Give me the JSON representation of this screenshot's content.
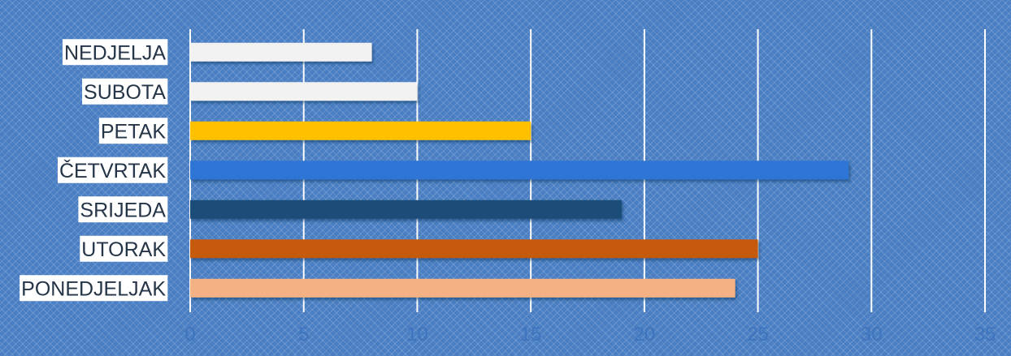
{
  "chart_data": {
    "type": "bar",
    "orientation": "horizontal",
    "categories": [
      "PONEDJELJAK",
      "UTORAK",
      "SRIJEDA",
      "ČETVRTAK",
      "PETAK",
      "SUBOTA",
      "NEDJELJA"
    ],
    "values": [
      24,
      25,
      19,
      29,
      15,
      10,
      8
    ],
    "bar_colors": [
      "#f4b183",
      "#c55a11",
      "#1f4e79",
      "#2f75d6",
      "#ffc000",
      "#f2f2f2",
      "#f2f2f2"
    ],
    "xlim": [
      0,
      35
    ],
    "xticks": [
      0,
      5,
      10,
      15,
      20,
      25,
      30,
      35
    ],
    "xtick_labels": [
      "0",
      "5",
      "10",
      "15",
      "20",
      "25",
      "30",
      "35"
    ],
    "grid": true,
    "title": "",
    "xlabel": "",
    "ylabel": ""
  }
}
